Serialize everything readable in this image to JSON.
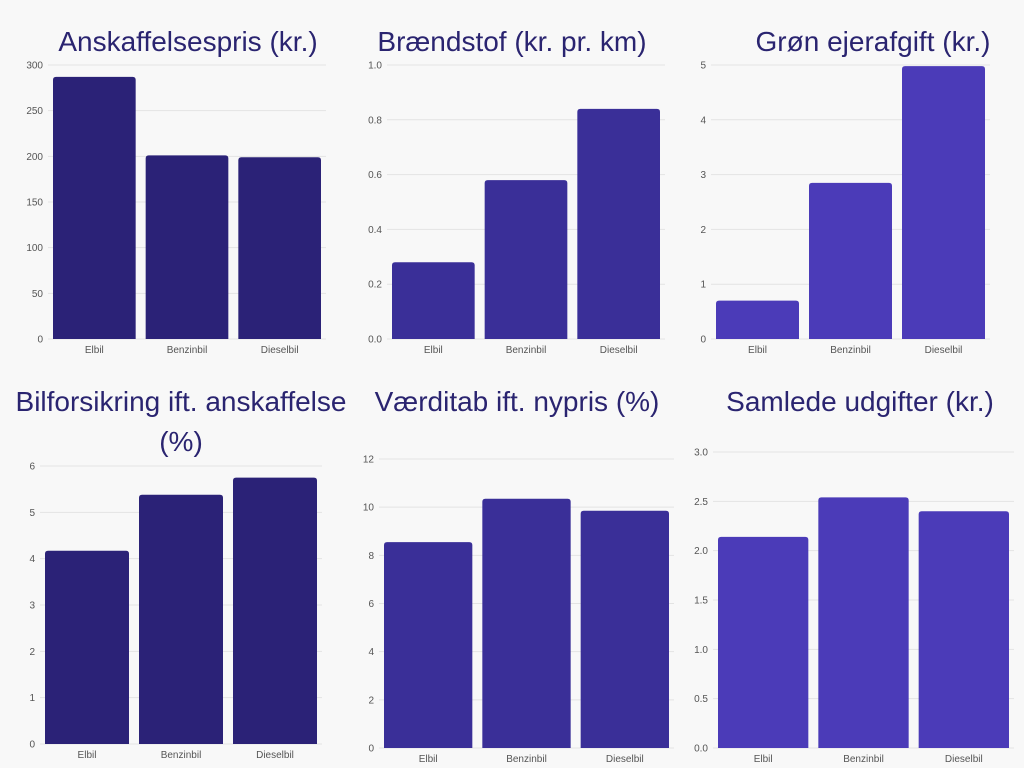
{
  "chart_data": [
    {
      "type": "bar",
      "title": "Anskaffelsespris (kr.)",
      "categories": [
        "Elbil",
        "Benzinbil",
        "Dieselbil"
      ],
      "values": [
        287,
        201,
        199
      ],
      "ylim": [
        0,
        300
      ],
      "yticks": [
        0,
        50,
        100,
        150,
        200,
        250,
        300
      ],
      "ytick_labels": [
        "0",
        "50",
        "100",
        "150",
        "200",
        "250",
        "300"
      ],
      "color": "#2b2277",
      "grid": true
    },
    {
      "type": "bar",
      "title": "Brændstof (kr. pr. km)",
      "categories": [
        "Elbil",
        "Benzinbil",
        "Dieselbil"
      ],
      "values": [
        0.28,
        0.58,
        0.84
      ],
      "ylim": [
        0,
        1.0
      ],
      "yticks": [
        0,
        0.2,
        0.4,
        0.6,
        0.8,
        1.0
      ],
      "ytick_labels": [
        "0.0",
        "0.2",
        "0.4",
        "0.6",
        "0.8",
        "1.0"
      ],
      "color": "#3a2f98",
      "grid": true
    },
    {
      "type": "bar",
      "title": "Grøn ejerafgift (kr.)",
      "categories": [
        "Elbil",
        "Benzinbil",
        "Dieselbil"
      ],
      "values": [
        0.7,
        2.85,
        4.98
      ],
      "ylim": [
        0,
        5
      ],
      "yticks": [
        0,
        1,
        2,
        3,
        4,
        5
      ],
      "ytick_labels": [
        "0",
        "1",
        "2",
        "3",
        "4",
        "5"
      ],
      "color": "#4b3bb8",
      "grid": true
    },
    {
      "type": "bar",
      "title": "Bilforsikring ift. anskaffelse (%)",
      "categories": [
        "Elbil",
        "Benzinbil",
        "Dieselbil"
      ],
      "values": [
        4.17,
        5.38,
        5.75
      ],
      "ylim": [
        0,
        6
      ],
      "yticks": [
        0,
        1,
        2,
        3,
        4,
        5,
        6
      ],
      "ytick_labels": [
        "0",
        "1",
        "2",
        "3",
        "4",
        "5",
        "6"
      ],
      "color": "#2b2277",
      "grid": true
    },
    {
      "type": "bar",
      "title": "Værditab ift. nypris (%)",
      "categories": [
        "Elbil",
        "Benzinbil",
        "Dieselbil"
      ],
      "values": [
        8.55,
        10.35,
        9.85
      ],
      "ylim": [
        0,
        12
      ],
      "yticks": [
        0,
        2,
        4,
        6,
        8,
        10,
        12
      ],
      "ytick_labels": [
        "0",
        "2",
        "4",
        "6",
        "8",
        "10",
        "12"
      ],
      "color": "#3a2f98",
      "grid": true
    },
    {
      "type": "bar",
      "title": "Samlede udgifter (kr.)",
      "categories": [
        "Elbil",
        "Benzinbil",
        "Dieselbil"
      ],
      "values": [
        2.14,
        2.54,
        2.4
      ],
      "ylim": [
        0,
        3.0
      ],
      "yticks": [
        0,
        0.5,
        1.0,
        1.5,
        2.0,
        2.5,
        3.0
      ],
      "ytick_labels": [
        "0.0",
        "0.5",
        "1.0",
        "1.5",
        "2.0",
        "2.5",
        "3.0"
      ],
      "color": "#4b3bb8",
      "grid": true
    }
  ]
}
